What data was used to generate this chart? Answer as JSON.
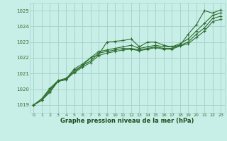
{
  "xlabel": "Graphe pression niveau de la mer (hPa)",
  "bg_color": "#c8eee8",
  "grid_color": "#aad4cc",
  "line_color": "#2d6e2d",
  "ylim": [
    1018.5,
    1025.5
  ],
  "xlim": [
    -0.5,
    23.5
  ],
  "yticks": [
    1019,
    1020,
    1021,
    1022,
    1023,
    1024,
    1025
  ],
  "xticks": [
    0,
    1,
    2,
    3,
    4,
    5,
    6,
    7,
    8,
    9,
    10,
    11,
    12,
    13,
    14,
    15,
    16,
    17,
    18,
    19,
    20,
    21,
    22,
    23
  ],
  "series": [
    [
      1019.0,
      1019.3,
      1019.8,
      1020.5,
      1020.6,
      1021.1,
      1021.5,
      1022.0,
      1022.2,
      1023.0,
      1023.05,
      1023.1,
      1023.2,
      1022.7,
      1023.0,
      1023.0,
      1022.8,
      1022.7,
      1022.8,
      1023.5,
      1024.1,
      1025.0,
      1024.85,
      1025.05
    ],
    [
      1019.0,
      1019.3,
      1019.9,
      1020.5,
      1020.65,
      1021.3,
      1021.6,
      1022.0,
      1022.4,
      1022.5,
      1022.6,
      1022.7,
      1022.8,
      1022.6,
      1022.7,
      1022.8,
      1022.7,
      1022.7,
      1022.9,
      1023.2,
      1023.7,
      1024.2,
      1024.7,
      1024.85
    ],
    [
      1019.0,
      1019.3,
      1020.0,
      1020.5,
      1020.65,
      1021.2,
      1021.5,
      1021.8,
      1022.3,
      1022.4,
      1022.5,
      1022.6,
      1022.6,
      1022.5,
      1022.6,
      1022.7,
      1022.6,
      1022.6,
      1022.8,
      1023.0,
      1023.5,
      1023.9,
      1024.5,
      1024.65
    ],
    [
      1019.0,
      1019.4,
      1020.05,
      1020.55,
      1020.7,
      1021.05,
      1021.4,
      1021.7,
      1022.15,
      1022.3,
      1022.4,
      1022.5,
      1022.55,
      1022.45,
      1022.55,
      1022.65,
      1022.55,
      1022.55,
      1022.75,
      1022.9,
      1023.3,
      1023.7,
      1024.3,
      1024.45
    ]
  ]
}
